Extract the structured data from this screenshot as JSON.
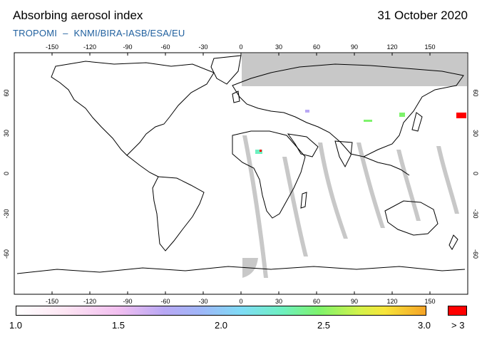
{
  "header": {
    "title": "Absorbing aerosol index",
    "date": "31 October 2020",
    "subtitle_instrument": "TROPOMI",
    "subtitle_separator": "–",
    "subtitle_credit": "KNMI/BIRA-IASB/ESA/EU"
  },
  "map": {
    "projection": "plate-carree",
    "longitude_ticks": [
      "-150",
      "-120",
      "-90",
      "-60",
      "-30",
      "0",
      "30",
      "60",
      "90",
      "120",
      "150"
    ],
    "latitude_ticks": [
      "60",
      "30",
      "0",
      "-30",
      "-60"
    ],
    "no_data_color": "#c8c8c8",
    "land_outline_color": "#000000",
    "background_color": "#ffffff"
  },
  "colorbar": {
    "tick_labels": [
      "1.0",
      "1.5",
      "2.0",
      "2.5",
      "3.0"
    ],
    "overflow_label": "> 3",
    "overflow_color": "#ff0000",
    "range": [
      1.0,
      3.0
    ]
  }
}
